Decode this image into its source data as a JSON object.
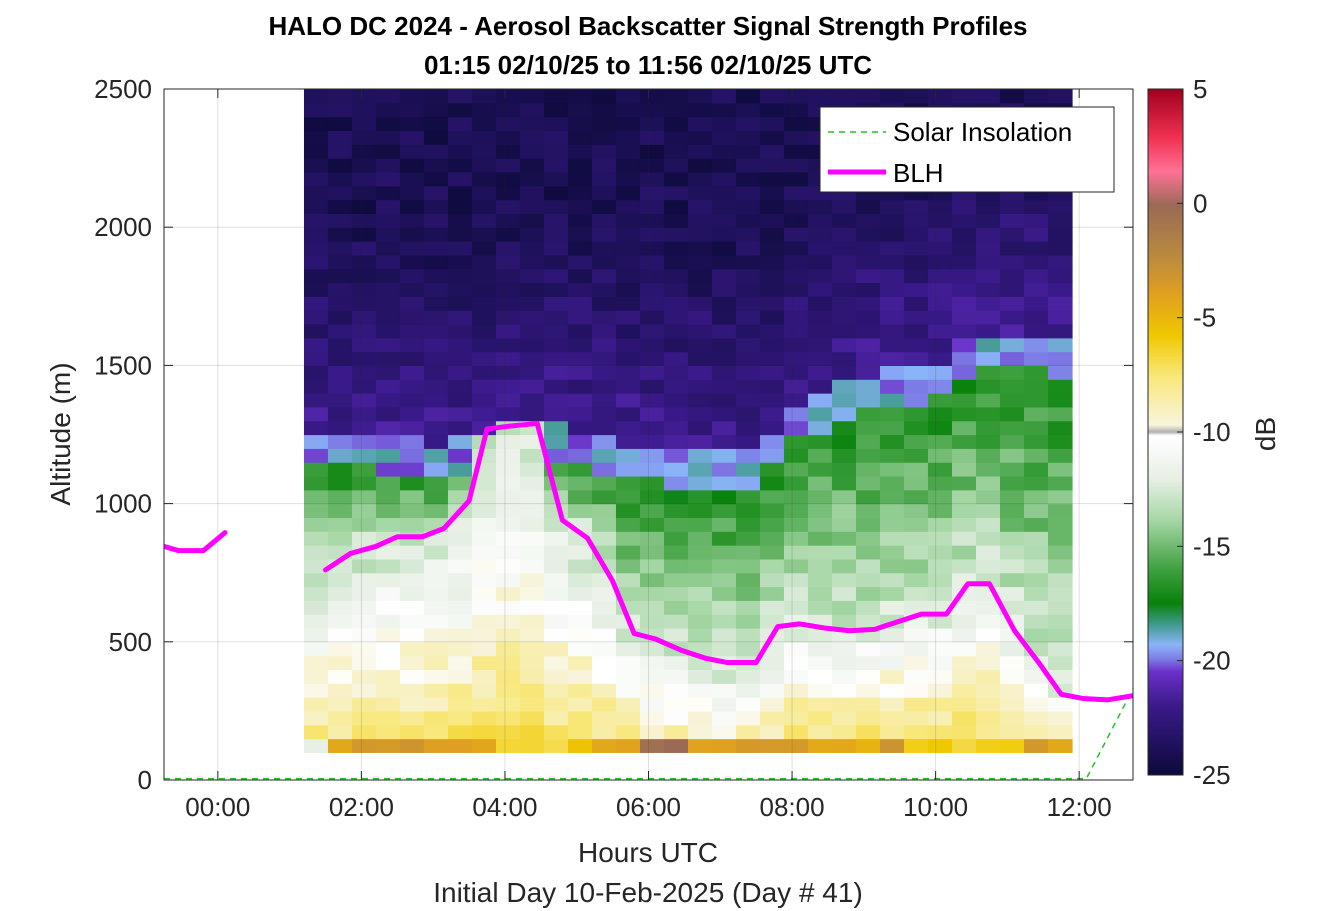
{
  "chart_data": {
    "type": "heatmap",
    "title": "HALO DC 2024 - Aerosol Backscatter Signal Strength Profiles",
    "subtitle": "01:15 02/10/25 to 11:56 02/10/25  UTC",
    "xlabel": "Hours UTC",
    "xlabel2": "Initial Day 10-Feb-2025 (Day # 41)",
    "ylabel": "Altitude (m)",
    "xlim": [
      -0.75,
      12.75
    ],
    "ylim": [
      0,
      2500
    ],
    "xticks": [
      0,
      2,
      4,
      6,
      8,
      10,
      12
    ],
    "xtick_labels": [
      "00:00",
      "02:00",
      "04:00",
      "06:00",
      "08:00",
      "10:00",
      "12:00"
    ],
    "yticks": [
      0,
      500,
      1000,
      1500,
      2000,
      2500
    ],
    "ytick_labels": [
      "0",
      "500",
      "1000",
      "1500",
      "2000",
      "2500"
    ],
    "grid": true,
    "colorbar": {
      "label": "dB",
      "range": [
        -25,
        5
      ],
      "ticks": [
        5,
        0,
        -5,
        -10,
        -15,
        -20,
        -25
      ],
      "tick_labels": [
        "5",
        "0",
        "-5",
        "-10",
        "-15",
        "-20",
        "-25"
      ]
    },
    "legend": {
      "placement": "top-right",
      "entries": [
        {
          "name": "Solar Insolation",
          "color": "#22c322",
          "style": "dashed"
        },
        {
          "name": "BLH",
          "color": "#ff00ff",
          "style": "solid"
        }
      ]
    },
    "heatmap": {
      "x_start": 1.2,
      "x_end": 11.9,
      "y_start": 100,
      "y_end": 2500,
      "columns": 32,
      "rows": 48
    },
    "series": [
      {
        "name": "BLH",
        "color": "#ff00ff",
        "segments": [
          {
            "x": [
              -0.75,
              -0.55,
              -0.2,
              0.1
            ],
            "y": [
              845,
              830,
              830,
              895
            ]
          },
          {
            "x": [
              1.5,
              1.85,
              2.2,
              2.5,
              2.85,
              3.15,
              3.5,
              3.75,
              4.05,
              4.45,
              4.8,
              5.15,
              5.5,
              5.8,
              6.1,
              6.45,
              6.8,
              7.1,
              7.5,
              7.8,
              8.1,
              8.45,
              8.8,
              9.15,
              9.5,
              9.8,
              10.15,
              10.45,
              10.75,
              11.1,
              11.45,
              11.75,
              12.05,
              12.4,
              12.75
            ],
            "y": [
              760,
              820,
              845,
              880,
              880,
              910,
              1010,
              1270,
              1280,
              1290,
              940,
              875,
              720,
              530,
              510,
              470,
              440,
              425,
              425,
              555,
              565,
              550,
              540,
              545,
              575,
              600,
              600,
              710,
              710,
              540,
              420,
              310,
              295,
              290,
              305
            ]
          }
        ]
      },
      {
        "name": "Solar Insolation",
        "color": "#22c322",
        "x": [
          -0.75,
          12.1,
          12.75
        ],
        "y": [
          5,
          5,
          330
        ]
      }
    ]
  }
}
